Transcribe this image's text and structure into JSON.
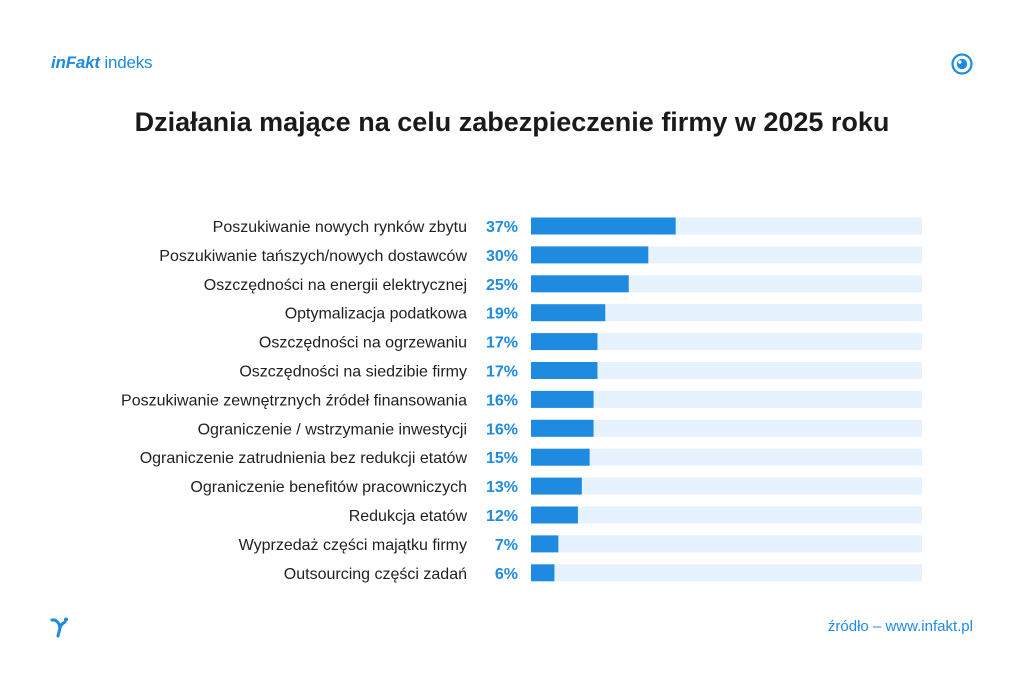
{
  "header": {
    "brand_strong": "inFakt",
    "brand_light": " indeks",
    "corner_icon": "eye-icon"
  },
  "colors": {
    "accent": "#1f8be0",
    "bar": "#1f8be0",
    "track": "#e6f2fd",
    "label": "#1f1f1f"
  },
  "chart_data": {
    "type": "bar",
    "orientation": "horizontal",
    "title": "Działania mające na celu zabezpieczenie firmy w 2025 roku",
    "xlim": [
      0,
      100
    ],
    "unit": "%",
    "grid": false,
    "legend": "none",
    "categories": [
      "Poszukiwanie nowych rynków zbytu",
      "Poszukiwanie tańszych/nowych dostawców",
      "Oszczędności na energii elektrycznej",
      "Optymalizacja podatkowa",
      "Oszczędności na ogrzewaniu",
      "Oszczędności na siedzibie firmy",
      "Poszukiwanie zewnętrznych źródeł finansowania",
      "Ograniczenie / wstrzymanie inwestycji",
      "Ograniczenie zatrudnienia bez redukcji etatów",
      "Ograniczenie benefitów pracowniczych",
      "Redukcja etatów",
      "Wyprzedaż części majątku firmy",
      "Outsourcing części zadań"
    ],
    "values": [
      37,
      30,
      25,
      19,
      17,
      17,
      16,
      16,
      15,
      13,
      12,
      7,
      6
    ],
    "value_labels": [
      "37%",
      "30%",
      "25%",
      "19%",
      "17%",
      "17%",
      "16%",
      "16%",
      "15%",
      "13%",
      "12%",
      "7%",
      "6%"
    ]
  },
  "footer": {
    "logo_icon": "bird-logo-icon",
    "source": "źródło – www.infakt.pl"
  }
}
